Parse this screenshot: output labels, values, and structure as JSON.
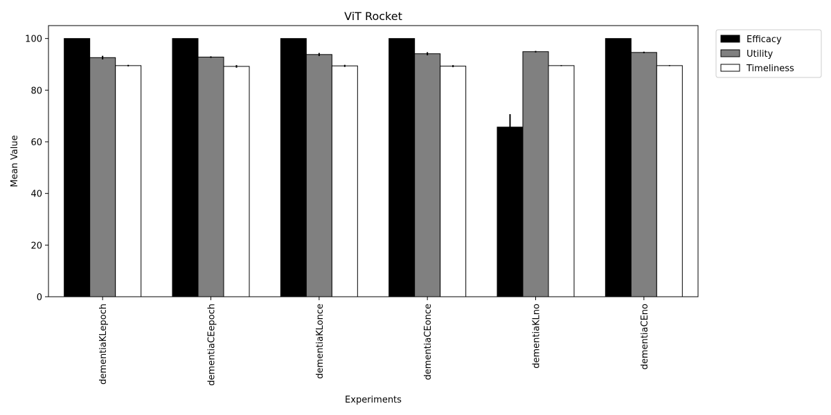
{
  "chart_data": {
    "type": "bar",
    "title": "ViT Rocket",
    "xlabel": "Experiments",
    "ylabel": "Mean Value",
    "ylim": [
      0,
      105
    ],
    "yticks": [
      0,
      20,
      40,
      60,
      80,
      100
    ],
    "grid": false,
    "legend_position": "outside-top-right",
    "categories": [
      "dementiaKLepoch",
      "dementiaCEepoch",
      "dementiaKLonce",
      "dementiaCEonce",
      "dementiaKLno",
      "dementiaCEno"
    ],
    "series": [
      {
        "name": "Efficacy",
        "color": "#000000",
        "values": [
          100,
          100,
          100,
          100,
          65.7,
          100
        ],
        "errors": [
          0,
          0,
          0,
          0,
          5,
          0
        ]
      },
      {
        "name": "Utility",
        "color": "#808080",
        "values": [
          92.6,
          92.8,
          93.8,
          94.1,
          94.9,
          94.6
        ],
        "errors": [
          0.7,
          0.3,
          0.6,
          0.6,
          0.3,
          0.3
        ]
      },
      {
        "name": "Timeliness",
        "color": "#ffffff",
        "values": [
          89.5,
          89.2,
          89.4,
          89.3,
          89.5,
          89.5
        ],
        "errors": [
          0.3,
          0.5,
          0.4,
          0.4,
          0.2,
          0.2
        ]
      }
    ]
  }
}
